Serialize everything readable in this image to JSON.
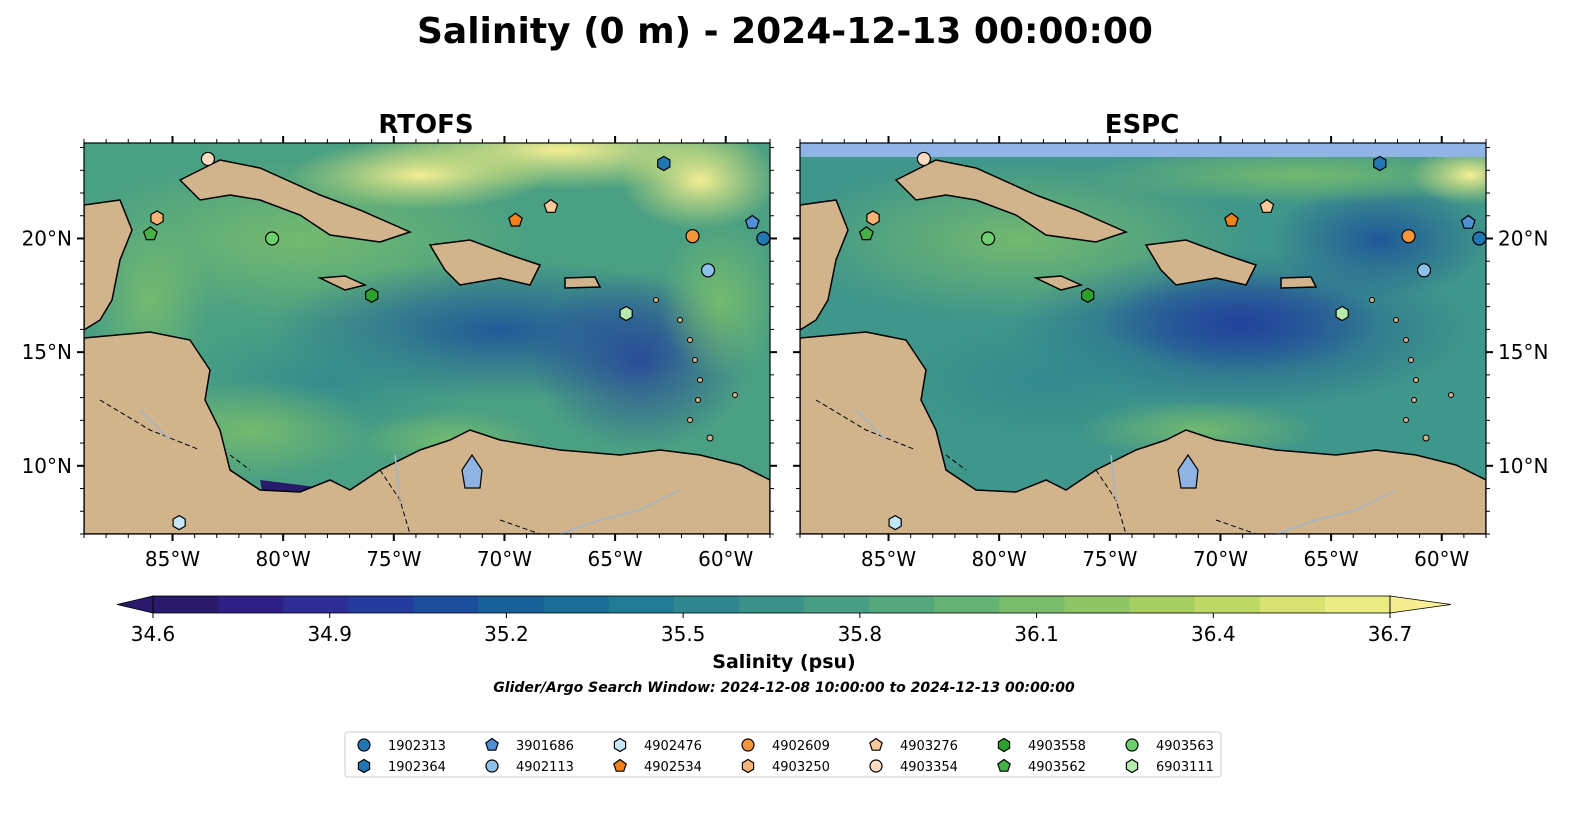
{
  "figure": {
    "title": "Salinity (0 m) - 2024-12-13 00:00:00",
    "panels": [
      {
        "title": "RTOFS",
        "model": "RTOFS"
      },
      {
        "title": "ESPC",
        "model": "ESPC"
      }
    ],
    "map_extent": {
      "lon": [
        -89,
        -58
      ],
      "lat": [
        7,
        24.2
      ]
    },
    "lon_ticks": [
      {
        "value": -85,
        "label": "85°W"
      },
      {
        "value": -80,
        "label": "80°W"
      },
      {
        "value": -75,
        "label": "75°W"
      },
      {
        "value": -70,
        "label": "70°W"
      },
      {
        "value": -65,
        "label": "65°W"
      },
      {
        "value": -60,
        "label": "60°W"
      }
    ],
    "lat_ticks": [
      {
        "value": 20,
        "label": "20°N"
      },
      {
        "value": 15,
        "label": "15°N"
      },
      {
        "value": 10,
        "label": "10°N"
      }
    ],
    "colorbar": {
      "label": "Salinity (psu)",
      "min": 34.6,
      "max": 36.7,
      "ticks": [
        "34.6",
        "34.9",
        "35.2",
        "35.5",
        "35.8",
        "36.1",
        "36.4",
        "36.7"
      ],
      "colors": [
        "#2a1a6b",
        "#2d1f86",
        "#2e2d96",
        "#233c9d",
        "#1a4e9c",
        "#17609a",
        "#186e97",
        "#217b94",
        "#2d878f",
        "#3a938a",
        "#479e84",
        "#55a87d",
        "#65b374",
        "#79bd6c",
        "#8ec565",
        "#a6cf62",
        "#bed966",
        "#d6e371",
        "#ebec83"
      ],
      "extend": "both"
    },
    "subtitle": "Glider/Argo Search Window: 2024-12-08 10:00:00 to 2024-12-13 00:00:00",
    "colors": {
      "land": "#d2b48c",
      "deep_low": "#291a6b",
      "lake": "#8fb4e3",
      "nodata": "#91b4e6"
    },
    "platforms": [
      {
        "id": "1902313",
        "label": "1902313",
        "marker": "circle",
        "color": "#1f77b4",
        "lon": -58.3,
        "lat": 20.0
      },
      {
        "id": "1902364",
        "label": "1902364",
        "marker": "hexagon",
        "color": "#1f77b4",
        "lon": -62.8,
        "lat": 23.3
      },
      {
        "id": "3901686",
        "label": "3901686",
        "marker": "pentagon",
        "color": "#4f8fd6",
        "lon": -58.8,
        "lat": 20.7
      },
      {
        "id": "4902113",
        "label": "4902113",
        "marker": "circle",
        "color": "#8ec0ea",
        "lon": -60.8,
        "lat": 18.6
      },
      {
        "id": "4902476",
        "label": "4902476",
        "marker": "hexagon",
        "color": "#c5e6f8",
        "lon": -84.7,
        "lat": 7.5
      },
      {
        "id": "4902534",
        "label": "4902534",
        "marker": "pentagon",
        "color": "#f0821e",
        "lon": -69.5,
        "lat": 20.8
      },
      {
        "id": "4902609",
        "label": "4902609",
        "marker": "circle",
        "color": "#f4953c",
        "lon": -61.5,
        "lat": 20.1
      },
      {
        "id": "4903250",
        "label": "4903250",
        "marker": "hexagon",
        "color": "#f7b477",
        "lon": -85.7,
        "lat": 20.9
      },
      {
        "id": "4903276",
        "label": "4903276",
        "marker": "pentagon",
        "color": "#f9c99c",
        "lon": -67.9,
        "lat": 21.4
      },
      {
        "id": "4903354",
        "label": "4903354",
        "marker": "circle",
        "color": "#fcdcc0",
        "lon": -83.4,
        "lat": 23.5
      },
      {
        "id": "4903558",
        "label": "4903558",
        "marker": "hexagon",
        "color": "#2ca02c",
        "lon": -76.0,
        "lat": 17.5
      },
      {
        "id": "4903562",
        "label": "4903562",
        "marker": "pentagon",
        "color": "#45b045",
        "lon": -86.0,
        "lat": 20.2
      },
      {
        "id": "4903563",
        "label": "4903563",
        "marker": "circle",
        "color": "#6dcf6d",
        "lon": -80.5,
        "lat": 20.0
      },
      {
        "id": "6903111",
        "label": "6903111",
        "marker": "hexagon",
        "color": "#b6ebb0",
        "lon": -64.5,
        "lat": 16.7
      }
    ]
  }
}
